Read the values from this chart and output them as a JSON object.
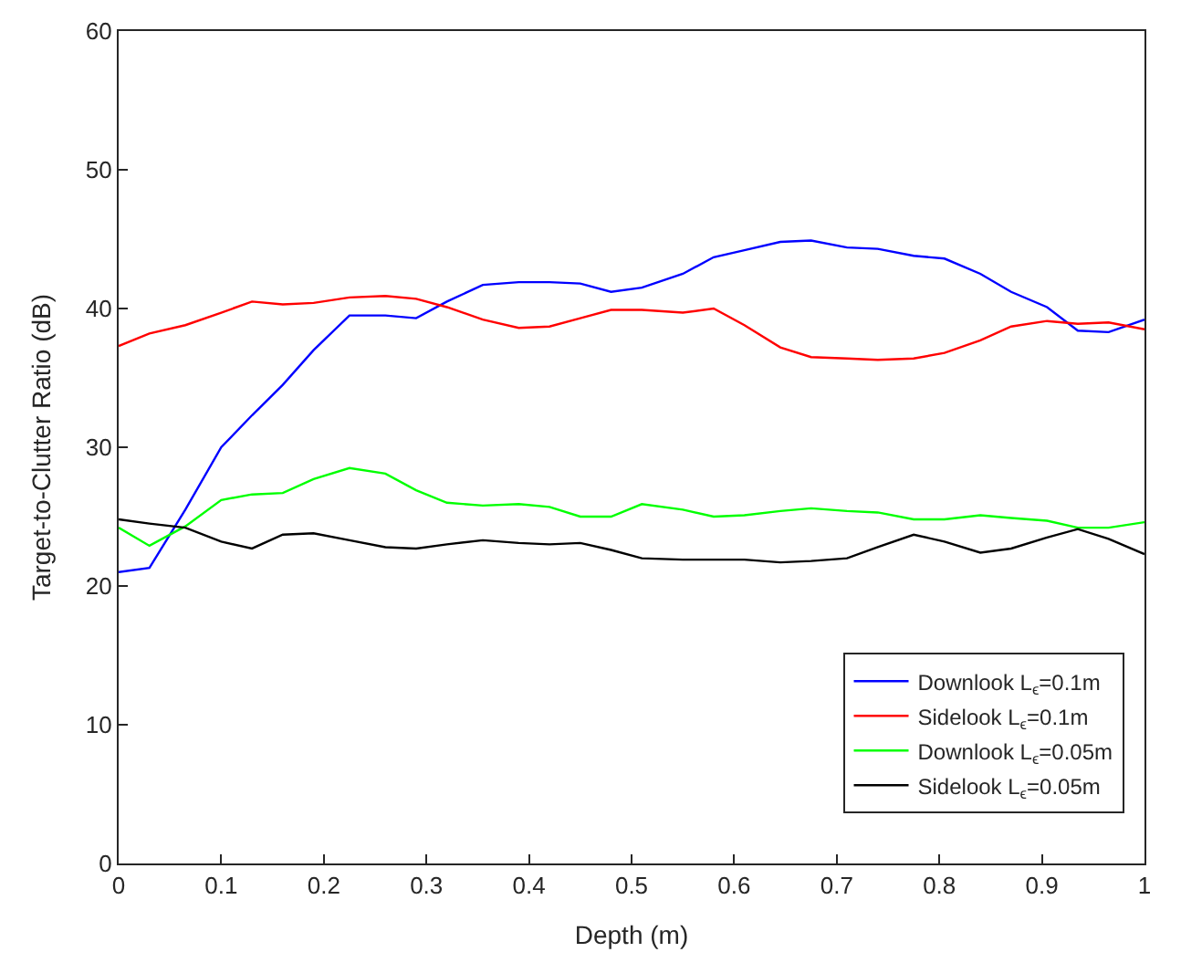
{
  "chart_data": {
    "type": "line",
    "xlabel": "Depth (m)",
    "ylabel": "Target-to-Clutter Ratio (dB)",
    "x": [
      0,
      0.03,
      0.065,
      0.1,
      0.13,
      0.16,
      0.19,
      0.225,
      0.26,
      0.29,
      0.32,
      0.355,
      0.39,
      0.42,
      0.45,
      0.48,
      0.51,
      0.55,
      0.58,
      0.61,
      0.645,
      0.675,
      0.71,
      0.74,
      0.775,
      0.805,
      0.84,
      0.87,
      0.905,
      0.935,
      0.965,
      1.0
    ],
    "series": [
      {
        "name": "Downlook L$_{ϵ}$=0.1m",
        "color": "#0000ff",
        "values": [
          21,
          21.3,
          25.5,
          30,
          32.3,
          34.5,
          37,
          39.5,
          39.5,
          39.3,
          40.5,
          41.7,
          41.9,
          41.9,
          41.8,
          41.2,
          41.5,
          42.5,
          43.7,
          44.2,
          44.8,
          44.9,
          44.4,
          44.3,
          43.8,
          43.6,
          42.5,
          41.2,
          40.1,
          38.4,
          38.3,
          39.2
        ]
      },
      {
        "name": "Sidelook L$_{ϵ}$=0.1m",
        "color": "#ff0000",
        "values": [
          37.3,
          38.2,
          38.8,
          39.7,
          40.5,
          40.3,
          40.4,
          40.8,
          40.9,
          40.7,
          40.1,
          39.2,
          38.6,
          38.7,
          39.3,
          39.9,
          39.9,
          39.7,
          40,
          38.8,
          37.2,
          36.5,
          36.4,
          36.3,
          36.4,
          36.8,
          37.7,
          38.7,
          39.1,
          38.9,
          39,
          38.5
        ]
      },
      {
        "name": "Downlook L$_{ϵ}$=0.05m",
        "color": "#00ff00",
        "values": [
          24.2,
          22.9,
          24.3,
          26.2,
          26.6,
          26.7,
          27.7,
          28.5,
          28.1,
          26.9,
          26,
          25.8,
          25.9,
          25.7,
          25,
          25,
          25.9,
          25.5,
          25,
          25.1,
          25.4,
          25.6,
          25.4,
          25.3,
          24.8,
          24.8,
          25.1,
          24.9,
          24.7,
          24.2,
          24.2,
          24.6
        ]
      },
      {
        "name": "Sidelook L$_{ϵ}$=0.05m",
        "color": "#000000",
        "values": [
          24.8,
          24.5,
          24.2,
          23.2,
          22.7,
          23.7,
          23.8,
          23.3,
          22.8,
          22.7,
          23,
          23.3,
          23.1,
          23,
          23.1,
          22.6,
          22,
          21.9,
          21.9,
          21.9,
          21.7,
          21.8,
          22,
          22.8,
          23.7,
          23.2,
          22.4,
          22.7,
          23.5,
          24.1,
          23.4,
          22.3
        ]
      }
    ],
    "xlim": [
      0,
      1
    ],
    "xticks": [
      0,
      0.1,
      0.2,
      0.3,
      0.4,
      0.5,
      0.6,
      0.7,
      0.8,
      0.9,
      1
    ],
    "ylim": [
      0,
      60
    ],
    "yticks": [
      0,
      10,
      20,
      30,
      40,
      50,
      60
    ],
    "legend": "bottom right",
    "line_style": "solid",
    "marker": "none"
  }
}
